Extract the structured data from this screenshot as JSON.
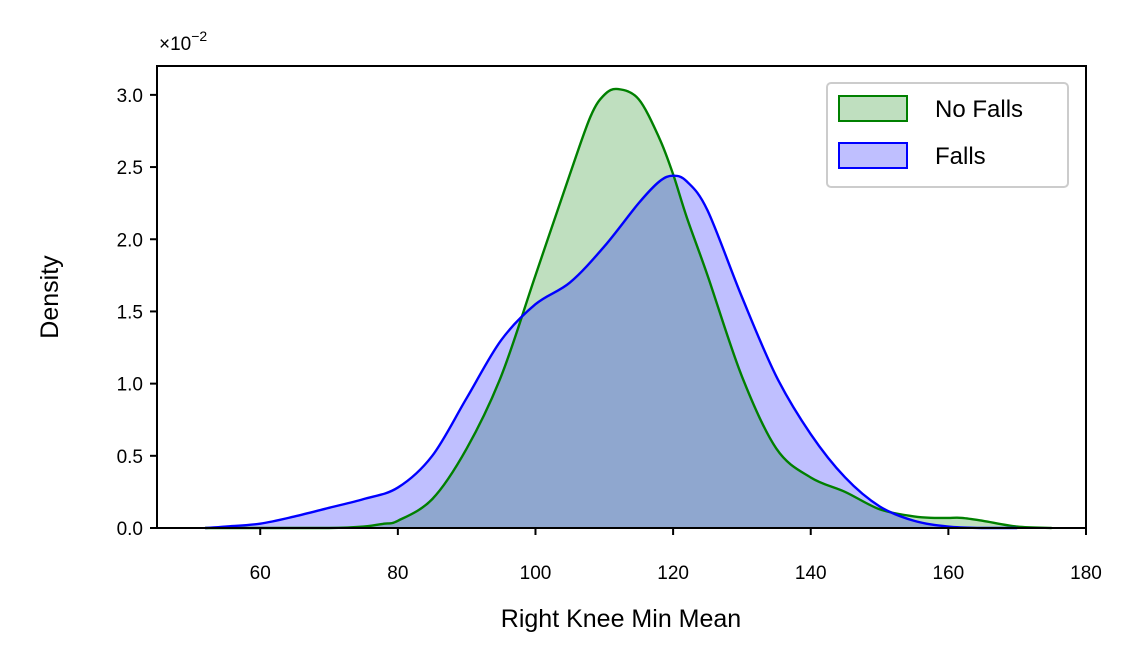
{
  "chart_data": {
    "type": "area",
    "title": "",
    "xlabel": "Right Knee Min Mean",
    "ylabel": "Density",
    "y_offset_label": "×10",
    "y_offset_exponent": "−2",
    "xlim": [
      45,
      180
    ],
    "ylim": [
      0,
      3.2
    ],
    "xticks": [
      60,
      80,
      100,
      120,
      140,
      160,
      180
    ],
    "yticks": [
      0.0,
      0.5,
      1.0,
      1.5,
      2.0,
      2.5,
      3.0
    ],
    "ytick_labels": [
      "0.0",
      "0.5",
      "1.0",
      "1.5",
      "2.0",
      "2.5",
      "3.0"
    ],
    "grid": false,
    "legend_position": "top-right",
    "series": [
      {
        "name": "No Falls",
        "color": "#008000",
        "x": [
          52,
          60,
          70,
          75,
          78,
          80,
          85,
          90,
          95,
          100,
          105,
          108,
          110,
          112,
          115,
          118,
          120,
          122,
          125,
          130,
          135,
          140,
          145,
          150,
          155,
          158,
          160,
          162,
          165,
          170,
          175
        ],
        "y": [
          0.0,
          0.0,
          0.0,
          0.01,
          0.03,
          0.05,
          0.2,
          0.55,
          1.05,
          1.75,
          2.45,
          2.85,
          3.0,
          3.04,
          2.97,
          2.7,
          2.45,
          2.15,
          1.75,
          1.05,
          0.55,
          0.35,
          0.25,
          0.13,
          0.08,
          0.07,
          0.07,
          0.07,
          0.05,
          0.01,
          0.0
        ]
      },
      {
        "name": "Falls",
        "color": "#0000ff",
        "x": [
          52,
          55,
          60,
          65,
          70,
          75,
          80,
          85,
          90,
          95,
          100,
          105,
          110,
          115,
          118,
          120,
          122,
          125,
          130,
          135,
          140,
          145,
          150,
          155,
          160,
          165,
          170
        ],
        "y": [
          0.0,
          0.01,
          0.03,
          0.08,
          0.14,
          0.2,
          0.28,
          0.5,
          0.9,
          1.3,
          1.55,
          1.7,
          1.95,
          2.25,
          2.4,
          2.44,
          2.4,
          2.2,
          1.6,
          1.05,
          0.65,
          0.35,
          0.15,
          0.05,
          0.01,
          0.0,
          0.0
        ]
      }
    ]
  }
}
